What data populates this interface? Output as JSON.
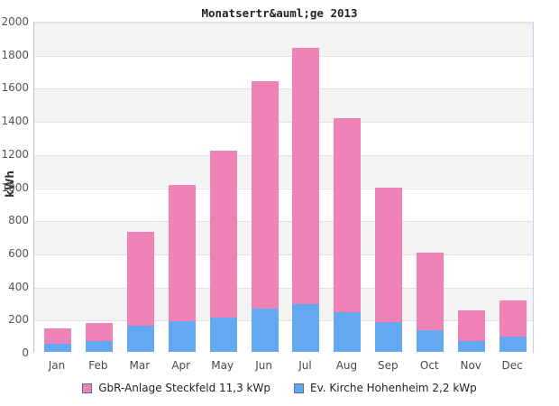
{
  "page": {
    "background": "#ffffff"
  },
  "chart_data": {
    "type": "bar",
    "stacked": true,
    "title": "Monatsertr&auml;ge 2013",
    "ylabel": "kWh",
    "xlabel": "",
    "categories": [
      "Jan",
      "Feb",
      "Mar",
      "Apr",
      "May",
      "Jun",
      "Jul",
      "Aug",
      "Sep",
      "Oct",
      "Nov",
      "Dec"
    ],
    "series": [
      {
        "name": "GbR-Anlage Steckfeld 11,3 kWp",
        "color": "#ef82b6",
        "values": [
          90,
          108,
          564,
          824,
          1010,
          1372,
          1546,
          1172,
          814,
          468,
          186,
          215
        ]
      },
      {
        "name": "Ev. Kirche Hohenheim 2,2 kWp",
        "color": "#63a8f0",
        "values": [
          50,
          64,
          160,
          184,
          205,
          262,
          290,
          240,
          178,
          130,
          66,
          95
        ]
      }
    ],
    "stack_totals": [
      140,
      172,
      724,
      1008,
      1215,
      1634,
      1836,
      1412,
      992,
      598,
      252,
      310
    ],
    "ylim": [
      0,
      2000
    ],
    "yticks": [
      2000,
      1800,
      1600,
      1400,
      1200,
      1000,
      800,
      600,
      400,
      200,
      0
    ],
    "grid": "horizontal gridlines with alternating shaded bands",
    "legend_position": "bottom"
  },
  "colors": {
    "band_shaded": "#f3f3f3",
    "band_plain": "#ffffff",
    "gridline": "#e2e2e2",
    "axis_line": "#bfbfbf",
    "right_border": "#c9cdef",
    "tick_text": "#555555",
    "title_text": "#222222",
    "legend_swatch_border": "#5f6a80"
  }
}
